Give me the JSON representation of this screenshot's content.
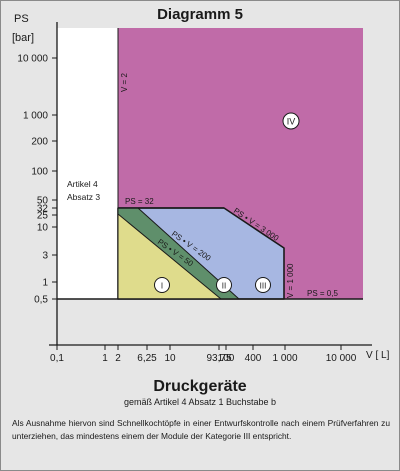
{
  "title": "Diagramm 5",
  "y_axis": {
    "label_line1": "PS",
    "label_line2": "[bar]",
    "ticks": [
      "10 000",
      "1 000",
      "200",
      "100",
      "50",
      "32",
      "25",
      "10",
      "3",
      "1",
      "0,5"
    ]
  },
  "x_axis": {
    "label": "V [ L]",
    "ticks": [
      "0,1",
      "1",
      "2",
      "6,25",
      "10",
      "93,75",
      "100",
      "400",
      "1 000",
      "10 000"
    ]
  },
  "regions": {
    "artikel_line1": "Artikel 4",
    "artikel_line2": "Absatz 3",
    "cat1": "I",
    "cat2": "II",
    "cat3": "III",
    "cat4": "IV"
  },
  "boundary_labels": {
    "v2": "V = 2",
    "ps32": "PS = 32",
    "psv3000": "PS • V = 3 000",
    "psv200": "PS • V = 200",
    "psv50": "PS • V = 50",
    "v1000": "V = 1 000",
    "ps05": "PS = 0,5"
  },
  "colors": {
    "background": "#e6e6e6",
    "white_zone": "#ffffff",
    "cat1": "#dfdc8c",
    "cat2": "#5f8f6b",
    "cat3": "#a7b7e2",
    "cat4": "#c06ba8",
    "lines": "#1a1a1a"
  },
  "subtitle_big": "Druckgeräte",
  "subtitle_small": "gemäß Artikel 4  Absatz 1 Buchstabe b",
  "footnote": "Als Ausnahme hiervon sind Schnellkochtöpfe in einer Entwurfskontrolle nach einem Prüfverfahren zu unterziehen, das mindestens einem der Module der Kategorie III entspricht."
}
